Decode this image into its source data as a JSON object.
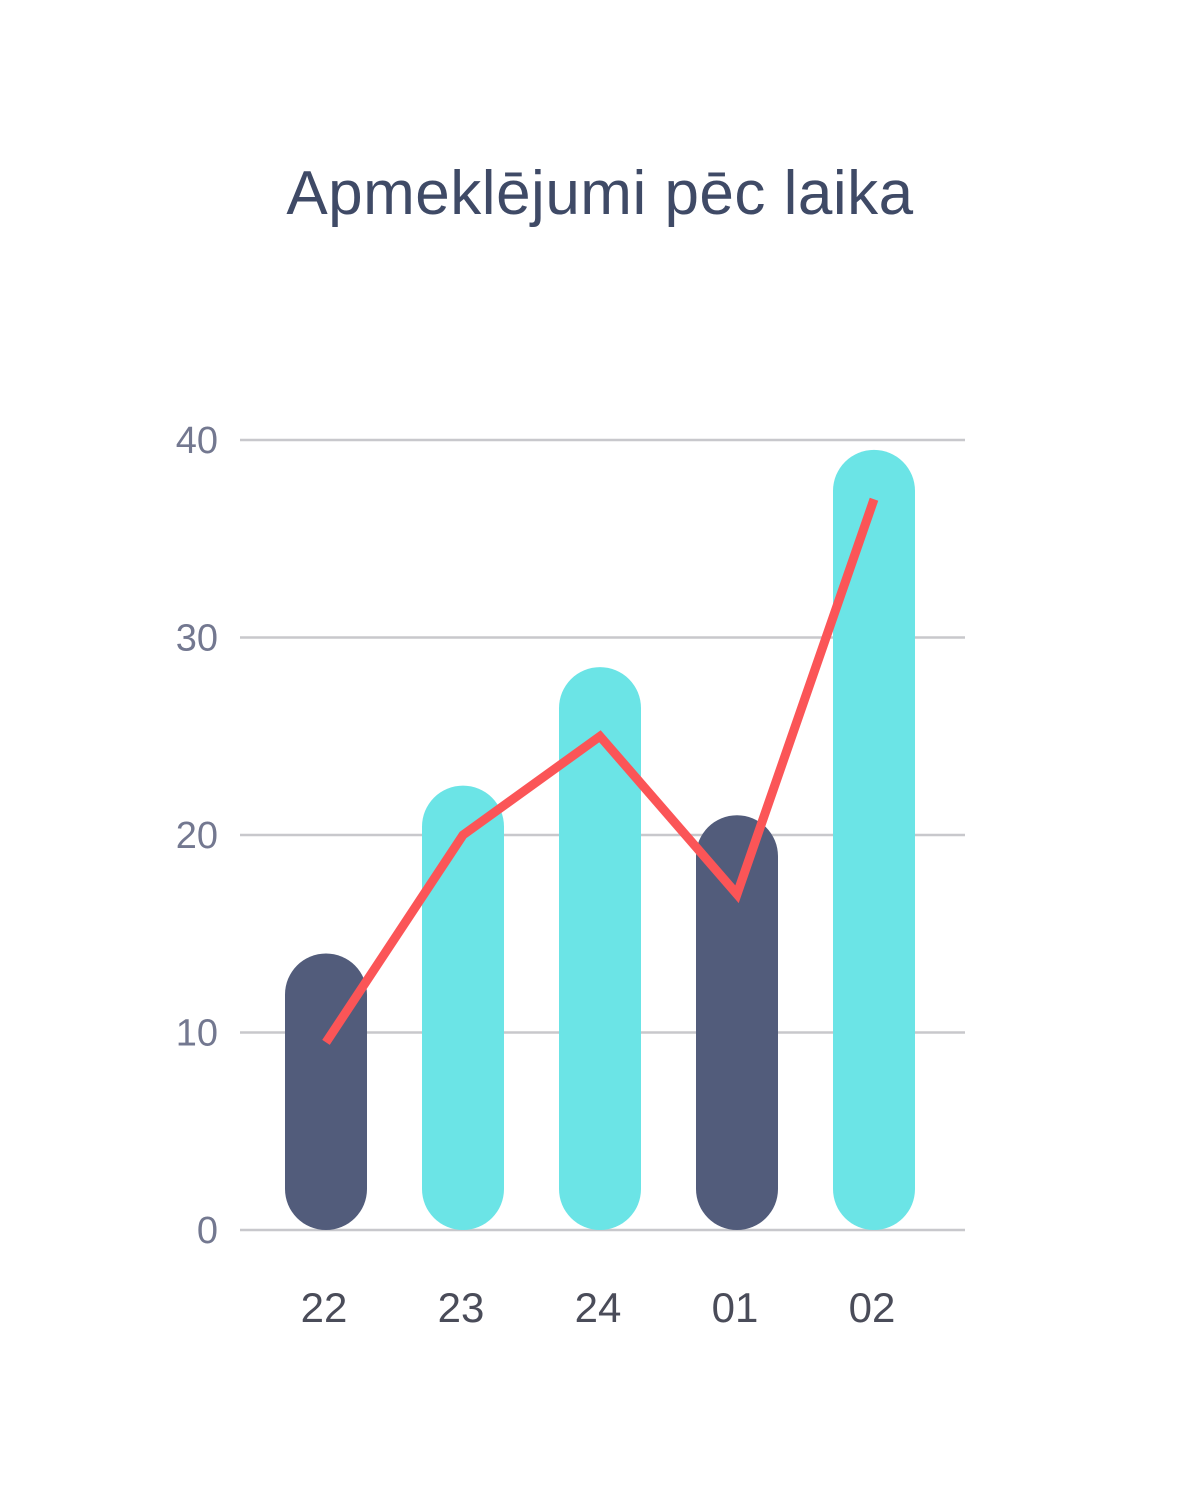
{
  "chart_data": {
    "type": "bar",
    "title": "Apmeklējumi pēc laika",
    "xlabel": "",
    "ylabel": "",
    "categories": [
      "22",
      "23",
      "24",
      "01",
      "02"
    ],
    "series": [
      {
        "type": "bar",
        "values": [
          14,
          22.5,
          28.5,
          21,
          39.5
        ]
      },
      {
        "type": "line",
        "values": [
          9.5,
          20,
          25,
          17,
          37
        ]
      }
    ],
    "ylim": [
      0,
      40
    ],
    "yticks": [
      "0",
      "10",
      "20",
      "30",
      "40"
    ],
    "grid": true,
    "colors": {
      "bar_dark": "#525c7b",
      "bar_light": "#6be4e6",
      "line": "#fb5557",
      "grid": "#c8c8cc"
    },
    "bar_color_pattern": [
      "dark",
      "light",
      "light",
      "dark",
      "light"
    ]
  }
}
